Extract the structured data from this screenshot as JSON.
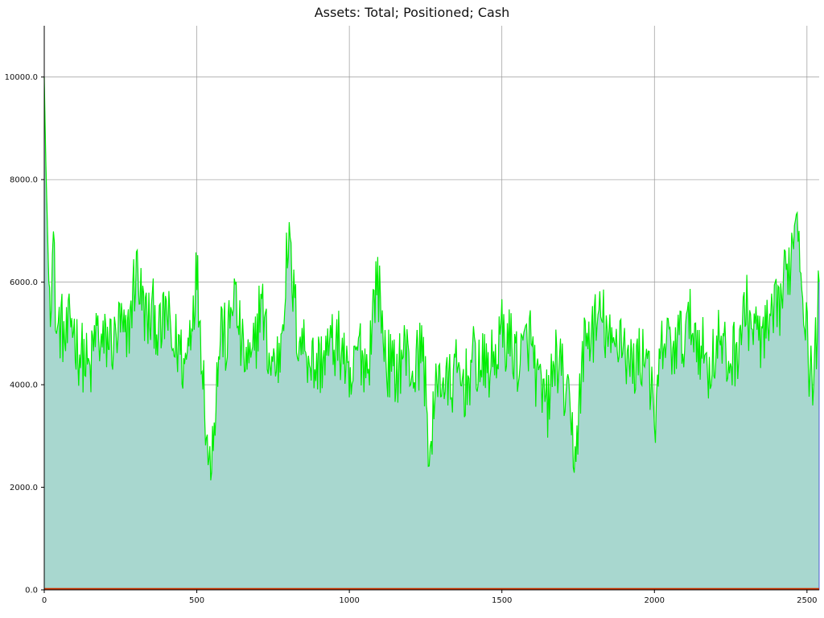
{
  "chart_data": {
    "type": "area",
    "title": "Assets: Total; Positioned; Cash",
    "xlabel": "",
    "ylabel": "",
    "xlim": [
      0,
      2540
    ],
    "ylim": [
      0,
      11000
    ],
    "grid": true,
    "x_ticks": [
      0,
      500,
      1000,
      1500,
      2000,
      2500
    ],
    "x_tick_labels": [
      "0",
      "500",
      "1000",
      "1500",
      "2000",
      "2500"
    ],
    "y_ticks": [
      0,
      2000,
      4000,
      6000,
      8000,
      10000
    ],
    "y_tick_labels": [
      "0.0",
      "2000.0",
      "4000.0",
      "6000.0",
      "8000.0",
      "10000.0"
    ],
    "colors": {
      "total": "#00ee00",
      "positioned_fill": "#a8d7cf",
      "positioned_line": "#0000cc",
      "cash": "#cc3300",
      "grid": "#999999",
      "axis": "#000000"
    },
    "series": [
      {
        "key": "total",
        "style": "line",
        "x": [
          0,
          5,
          10,
          15,
          20,
          30,
          40,
          55,
          70,
          90,
          110,
          130,
          150,
          170,
          190,
          210,
          230,
          250,
          270,
          290,
          305,
          320,
          340,
          360,
          380,
          400,
          420,
          440,
          460,
          480,
          500,
          520,
          540,
          560,
          580,
          600,
          620,
          650,
          680,
          710,
          740,
          770,
          800,
          830,
          860,
          890,
          920,
          950,
          980,
          1000,
          1030,
          1060,
          1090,
          1120,
          1150,
          1180,
          1210,
          1240,
          1265,
          1290,
          1320,
          1350,
          1380,
          1410,
          1440,
          1470,
          1500,
          1530,
          1560,
          1590,
          1620,
          1650,
          1680,
          1710,
          1740,
          1770,
          1800,
          1830,
          1860,
          1890,
          1920,
          1950,
          1980,
          2000,
          2010,
          2030,
          2060,
          2090,
          2120,
          2150,
          2180,
          2210,
          2240,
          2270,
          2300,
          2330,
          2360,
          2390,
          2420,
          2450,
          2465,
          2480,
          2495,
          2510,
          2525,
          2540
        ],
        "values": [
          10000,
          8400,
          7200,
          6000,
          5800,
          6800,
          5000,
          5200,
          4800,
          5300,
          4700,
          4500,
          4200,
          5100,
          4700,
          4900,
          4800,
          5200,
          4700,
          5800,
          6300,
          5600,
          5200,
          5400,
          4900,
          5500,
          4700,
          4800,
          4300,
          5200,
          6200,
          4400,
          2300,
          3600,
          5200,
          4700,
          5900,
          4600,
          4300,
          5700,
          4400,
          4500,
          6800,
          5000,
          4700,
          4300,
          4600,
          4800,
          4700,
          3700,
          4800,
          4300,
          6200,
          4500,
          4200,
          4700,
          4200,
          4800,
          2500,
          4300,
          3900,
          4200,
          4000,
          4500,
          4300,
          4400,
          5000,
          4800,
          4400,
          5000,
          3900,
          3600,
          4600,
          3800,
          2600,
          4800,
          5100,
          5300,
          4600,
          5100,
          4300,
          4500,
          4700,
          2900,
          3900,
          4900,
          4700,
          4900,
          5200,
          4800,
          4300,
          4900,
          4400,
          4700,
          5500,
          5000,
          4900,
          5200,
          5800,
          6600,
          7600,
          6500,
          5300,
          4200,
          4300,
          6000
        ],
        "name": ""
      },
      {
        "key": "positioned",
        "style": "area",
        "note_values_track_total": true,
        "name": ""
      },
      {
        "key": "cash",
        "style": "line",
        "x": [
          0,
          2540
        ],
        "values": [
          20,
          20
        ],
        "name": ""
      }
    ]
  }
}
